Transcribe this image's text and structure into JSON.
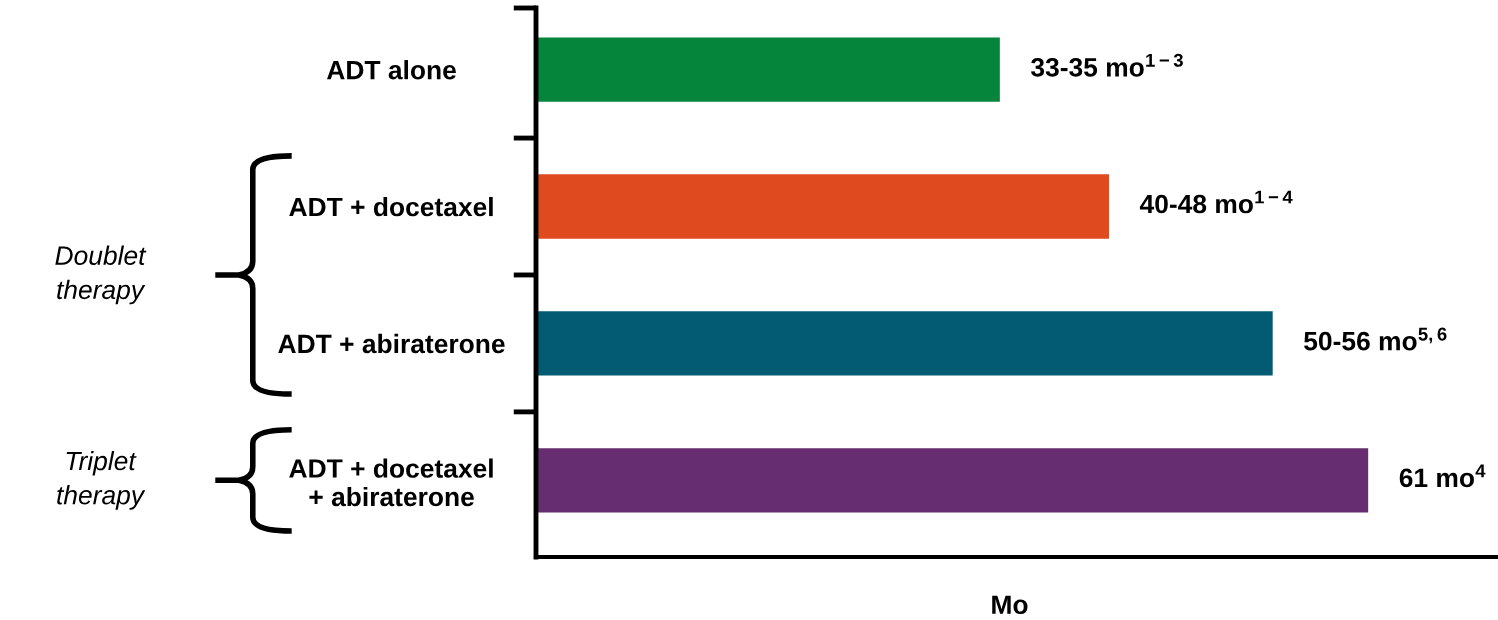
{
  "chart_data": {
    "type": "bar",
    "orientation": "horizontal",
    "tick_labels": "y",
    "grid": false,
    "categories": [
      "ADT alone",
      "ADT + docetaxel",
      "ADT + abiraterone",
      "ADT + docetaxel\n+ abiraterone"
    ],
    "values": [
      34,
      42,
      54,
      61
    ],
    "colors": [
      "#05843c",
      "#e04a1f",
      "#025a73",
      "#662e70"
    ],
    "value_labels": [
      "33-35 mo$^{1−3}$",
      "40-48 mo$^{1−4}$",
      "50-56 mo$^{5,6}$",
      "61 mo$^{4}$"
    ],
    "xlabel": "Mo",
    "annotations": [
      "Doublet\ntherapy",
      "Triplet\ntherapy"
    ]
  }
}
